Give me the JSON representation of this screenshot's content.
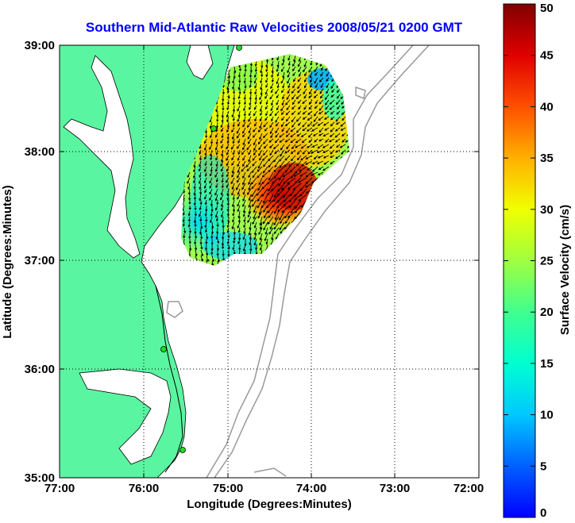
{
  "title": "Southern Mid-Atlantic Raw Velocities 2008/05/21 0200 GMT",
  "xaxis": {
    "label": "Longitude (Degrees:Minutes)",
    "ticks": [
      "77:00",
      "76:00",
      "75:00",
      "74:00",
      "73:00",
      "72:00"
    ]
  },
  "yaxis": {
    "label": "Latitude (Degrees:Minutes)",
    "ticks": [
      "39:00",
      "38:00",
      "37:00",
      "36:00",
      "35:00"
    ]
  },
  "colorbar": {
    "label": "Surface Velocity (cm/s)",
    "ticks": [
      "0",
      "5",
      "10",
      "15",
      "20",
      "25",
      "30",
      "35",
      "40",
      "45",
      "50"
    ],
    "min": 0,
    "max": 50
  },
  "colors": {
    "land": "#5af5a0",
    "title": "#0000ff",
    "bathymetry": "#999999",
    "station": "#22dd22"
  }
}
